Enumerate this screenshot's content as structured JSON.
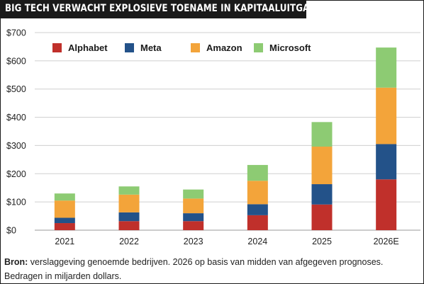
{
  "header": {
    "title": "BIG TECH VERWACHT EXPLOSIEVE TOENAME IN KAPITAALUITGAVEN"
  },
  "footer": {
    "source_label": "Bron:",
    "source_text": " verslaggeving genoemde bedrijven. 2026 op basis van midden van afgegeven prognoses.",
    "note": "Bedragen in miljarden dollars."
  },
  "chart_data": {
    "type": "bar",
    "stacked": true,
    "title": "BIG TECH VERWACHT EXPLOSIEVE TOENAME IN KAPITAALUITGAVEN",
    "xlabel": "",
    "ylabel": "",
    "categories": [
      "2021",
      "2022",
      "2023",
      "2024",
      "2025",
      "2026E"
    ],
    "ylim": [
      0,
      700
    ],
    "yticks": [
      0,
      100,
      200,
      300,
      400,
      500,
      600,
      700
    ],
    "ytick_labels": [
      "$0",
      "$100",
      "$200",
      "$300",
      "$400",
      "$500",
      "$600",
      "$700"
    ],
    "grid": true,
    "legend_position": "top",
    "series": [
      {
        "name": "Alphabet",
        "color": "#c0302b",
        "values": [
          25,
          32,
          32,
          53,
          91,
          180
        ]
      },
      {
        "name": "Meta",
        "color": "#235289",
        "values": [
          19,
          31,
          28,
          39,
          72,
          125
        ]
      },
      {
        "name": "Amazon",
        "color": "#f3a43a",
        "values": [
          61,
          63,
          52,
          83,
          133,
          200
        ]
      },
      {
        "name": "Microsoft",
        "color": "#8dcb73",
        "values": [
          25,
          29,
          32,
          56,
          87,
          142
        ]
      }
    ]
  }
}
